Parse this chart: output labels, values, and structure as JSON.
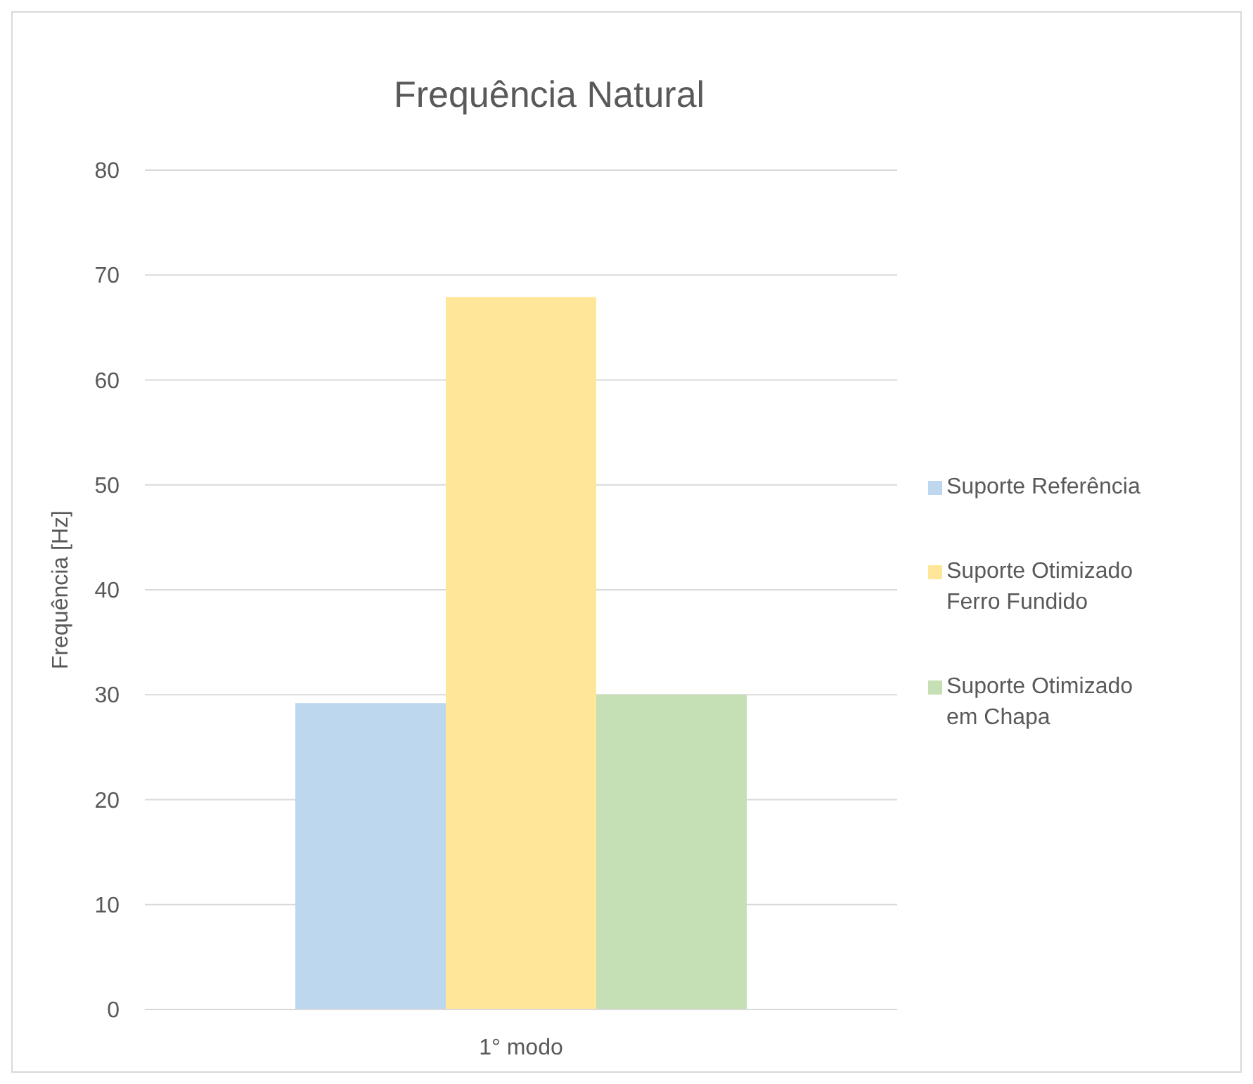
{
  "chart_data": {
    "type": "bar",
    "title": "Frequência Natural",
    "ylabel": "Frequência [Hz]",
    "categories": [
      "1° modo"
    ],
    "series": [
      {
        "name": "Suporte Referência",
        "color": "#bdd7ee",
        "values": [
          29.2
        ]
      },
      {
        "name": "Suporte Otimizado Ferro Fundido",
        "color": "#ffe699",
        "values": [
          67.9
        ]
      },
      {
        "name": "Suporte Otimizado em Chapa",
        "color": "#c5e0b4",
        "values": [
          30
        ]
      }
    ],
    "ylim": [
      0,
      80
    ],
    "yticks": [
      0,
      10,
      20,
      30,
      40,
      50,
      60,
      70,
      80
    ],
    "grid": "y",
    "legend": "right"
  }
}
